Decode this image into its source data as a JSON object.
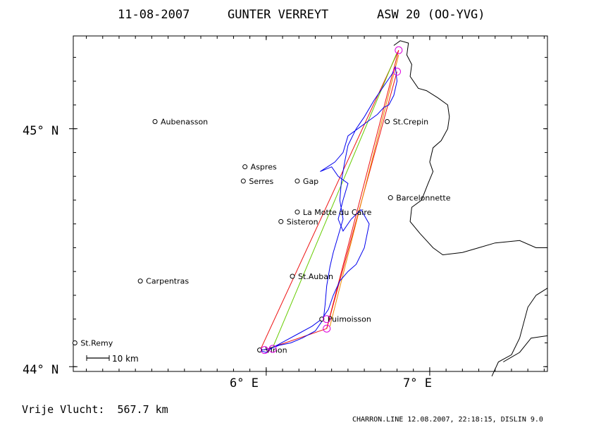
{
  "title": {
    "date": "11-08-2007",
    "pilot": "GUNTER VERREYT",
    "aircraft": "ASW 20 (OO-YVG)"
  },
  "axes": {
    "lat_ticks": [
      {
        "label": "45° N",
        "lat": 45.0
      },
      {
        "label": "44° N",
        "lat": 44.0
      }
    ],
    "lon_ticks": [
      {
        "label": "6° E",
        "lon": 6.0
      },
      {
        "label": "7° E",
        "lon": 7.0
      }
    ]
  },
  "places": [
    {
      "name": "Aubenasson",
      "lon": 5.32,
      "lat": 45.03
    },
    {
      "name": "Aspres",
      "lon": 5.87,
      "lat": 44.84
    },
    {
      "name": "Serres",
      "lon": 5.86,
      "lat": 44.78
    },
    {
      "name": "Gap",
      "lon": 6.19,
      "lat": 44.78
    },
    {
      "name": "St.Crepin",
      "lon": 6.74,
      "lat": 45.03
    },
    {
      "name": "Barcelonnette",
      "lon": 6.76,
      "lat": 44.71
    },
    {
      "name": "La Motte du Caire",
      "lon": 6.19,
      "lat": 44.65
    },
    {
      "name": "Sisteron",
      "lon": 6.09,
      "lat": 44.61
    },
    {
      "name": "St.Auban",
      "lon": 6.16,
      "lat": 44.38
    },
    {
      "name": "Carpentras",
      "lon": 5.23,
      "lat": 44.36
    },
    {
      "name": "Puimoisson",
      "lon": 6.34,
      "lat": 44.2
    },
    {
      "name": "St.Remy",
      "lon": 4.83,
      "lat": 44.1
    },
    {
      "name": "Vinon",
      "lon": 5.96,
      "lat": 44.07
    }
  ],
  "scale_bar": {
    "label": "10 km"
  },
  "footer": {
    "distance": "Vrije Vlucht:  567.7 km",
    "info": "CHARRON.LINE 12.08.2007, 22:18:15, DISLIN 9.0"
  },
  "colors": {
    "track": "#0000ee",
    "leg_red": "#ee1111",
    "leg_orange": "#ee8800",
    "leg_green": "#66cc00",
    "turnpoint": "#dd00dd",
    "border": "#000000"
  },
  "legs": [
    {
      "color": "leg_red",
      "points": [
        [
          5.96,
          44.065
        ],
        [
          6.81,
          45.33
        ]
      ]
    },
    {
      "color": "leg_red",
      "points": [
        [
          6.81,
          45.33
        ],
        [
          6.37,
          44.16
        ]
      ]
    },
    {
      "color": "leg_red",
      "points": [
        [
          6.37,
          44.16
        ],
        [
          5.99,
          44.07
        ]
      ]
    },
    {
      "color": "leg_red",
      "points": [
        [
          6.37,
          44.16
        ],
        [
          6.8,
          45.24
        ]
      ]
    },
    {
      "color": "leg_orange",
      "points": [
        [
          6.39,
          44.17
        ],
        [
          6.81,
          45.31
        ]
      ]
    },
    {
      "color": "leg_green",
      "points": [
        [
          6.04,
          44.08
        ],
        [
          6.8,
          45.32
        ]
      ]
    }
  ],
  "turnpoints": [
    {
      "lon": 6.81,
      "lat": 45.33
    },
    {
      "lon": 6.8,
      "lat": 45.24
    },
    {
      "lon": 6.37,
      "lat": 44.16
    },
    {
      "lon": 6.37,
      "lat": 44.2
    },
    {
      "lon": 5.99,
      "lat": 44.07
    },
    {
      "lon": 6.04,
      "lat": 44.075
    }
  ],
  "track": [
    [
      5.95,
      44.07
    ],
    [
      6.0,
      44.06
    ],
    [
      6.04,
      44.08
    ],
    [
      6.12,
      44.11
    ],
    [
      6.2,
      44.14
    ],
    [
      6.28,
      44.17
    ],
    [
      6.34,
      44.2
    ],
    [
      6.38,
      44.24
    ],
    [
      6.41,
      44.3
    ],
    [
      6.45,
      44.36
    ],
    [
      6.5,
      44.4
    ],
    [
      6.55,
      44.43
    ],
    [
      6.6,
      44.5
    ],
    [
      6.63,
      44.6
    ],
    [
      6.58,
      44.66
    ],
    [
      6.52,
      44.62
    ],
    [
      6.47,
      44.57
    ],
    [
      6.44,
      44.62
    ],
    [
      6.47,
      44.7
    ],
    [
      6.5,
      44.77
    ],
    [
      6.44,
      44.8
    ],
    [
      6.4,
      44.84
    ],
    [
      6.33,
      44.82
    ],
    [
      6.42,
      44.86
    ],
    [
      6.47,
      44.9
    ],
    [
      6.5,
      44.97
    ],
    [
      6.56,
      45.0
    ],
    [
      6.62,
      45.03
    ],
    [
      6.68,
      45.06
    ],
    [
      6.72,
      45.09
    ],
    [
      6.75,
      45.1
    ],
    [
      6.78,
      45.14
    ],
    [
      6.8,
      45.2
    ],
    [
      6.79,
      45.26
    ],
    [
      6.77,
      45.23
    ],
    [
      6.72,
      45.18
    ],
    [
      6.66,
      45.12
    ],
    [
      6.6,
      45.05
    ],
    [
      6.55,
      45.0
    ],
    [
      6.5,
      44.93
    ],
    [
      6.48,
      44.86
    ],
    [
      6.46,
      44.78
    ],
    [
      6.45,
      44.7
    ],
    [
      6.47,
      44.62
    ],
    [
      6.44,
      44.55
    ],
    [
      6.41,
      44.48
    ],
    [
      6.39,
      44.42
    ],
    [
      6.37,
      44.34
    ],
    [
      6.36,
      44.26
    ],
    [
      6.35,
      44.2
    ],
    [
      6.3,
      44.15
    ],
    [
      6.22,
      44.12
    ],
    [
      6.15,
      44.1
    ],
    [
      6.08,
      44.09
    ],
    [
      6.02,
      44.075
    ],
    [
      5.97,
      44.07
    ]
  ],
  "border": [
    [
      6.78,
      45.35
    ],
    [
      6.82,
      45.37
    ],
    [
      6.87,
      45.36
    ],
    [
      6.86,
      45.31
    ],
    [
      6.89,
      45.27
    ],
    [
      6.88,
      45.22
    ],
    [
      6.93,
      45.17
    ],
    [
      6.98,
      45.16
    ],
    [
      7.05,
      45.13
    ],
    [
      7.11,
      45.1
    ],
    [
      7.12,
      45.05
    ],
    [
      7.11,
      45.0
    ],
    [
      7.07,
      44.95
    ],
    [
      7.02,
      44.92
    ],
    [
      7.0,
      44.86
    ],
    [
      7.02,
      44.82
    ],
    [
      6.99,
      44.77
    ],
    [
      6.95,
      44.7
    ],
    [
      6.89,
      44.67
    ],
    [
      6.88,
      44.61
    ],
    [
      6.94,
      44.56
    ],
    [
      6.98,
      44.53
    ],
    [
      7.02,
      44.5
    ],
    [
      7.08,
      44.47
    ],
    [
      7.2,
      44.48
    ],
    [
      7.3,
      44.5
    ],
    [
      7.4,
      44.52
    ],
    [
      7.55,
      44.53
    ],
    [
      7.65,
      44.5
    ],
    [
      7.72,
      44.5
    ]
  ],
  "border2": [
    [
      7.72,
      44.33
    ],
    [
      7.65,
      44.3
    ],
    [
      7.6,
      44.25
    ],
    [
      7.55,
      44.12
    ],
    [
      7.5,
      44.05
    ],
    [
      7.42,
      44.02
    ],
    [
      7.38,
      43.96
    ]
  ],
  "border3": [
    [
      7.72,
      44.13
    ],
    [
      7.62,
      44.12
    ],
    [
      7.55,
      44.06
    ],
    [
      7.45,
      44.02
    ]
  ],
  "map_bounds": {
    "lon_min": 4.82,
    "lon_max": 7.72,
    "lat_min": 43.98,
    "lat_max": 45.39
  }
}
